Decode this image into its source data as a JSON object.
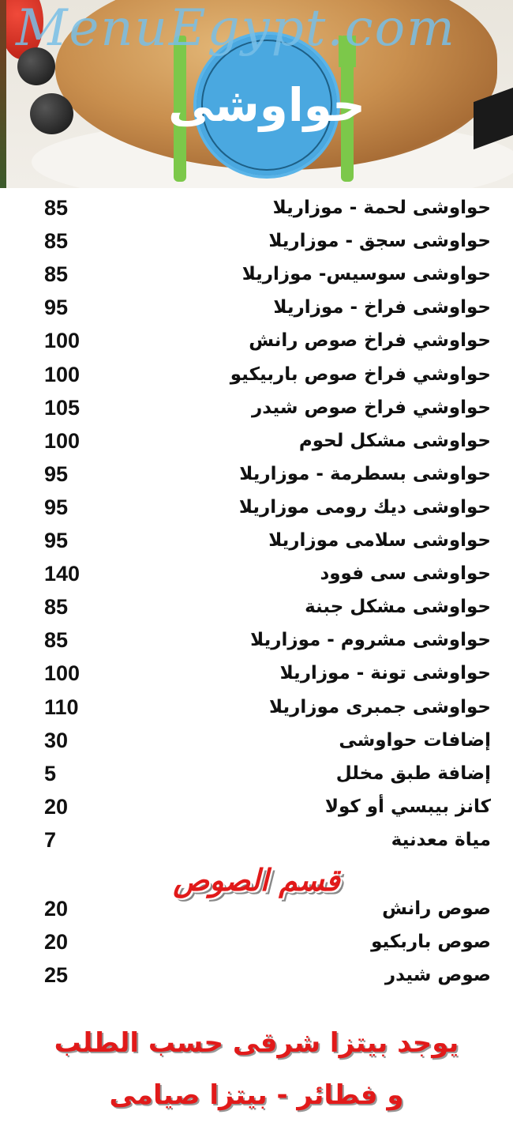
{
  "header": {
    "logo_text": "حواوشى"
  },
  "watermark": "MenuEgypt.com",
  "items": [
    {
      "name": "حواوشى لحمة - موزاريلا",
      "price": "85"
    },
    {
      "name": "حواوشى سجق - موزاريلا",
      "price": "85"
    },
    {
      "name": "حواوشى سوسيس- موزاريلا",
      "price": "85"
    },
    {
      "name": "حواوشى فراخ - موزاريلا",
      "price": "95"
    },
    {
      "name": "حواوشي فراخ صوص رانش",
      "price": "100"
    },
    {
      "name": "حواوشي فراخ صوص باربيكيو",
      "price": "100"
    },
    {
      "name": "حواوشي فراخ صوص شيدر",
      "price": "105"
    },
    {
      "name": "حواوشى مشكل لحوم",
      "price": "100"
    },
    {
      "name": "حواوشى بسطرمة - موزاريلا",
      "price": "95"
    },
    {
      "name": "حواوشى ديك رومى موزاريلا",
      "price": "95"
    },
    {
      "name": "حواوشى سلامى موزاريلا",
      "price": "95"
    },
    {
      "name": "حواوشى سى فوود",
      "price": "140"
    },
    {
      "name": "حواوشى مشكل جبنة",
      "price": "85"
    },
    {
      "name": "حواوشى مشروم - موزاريلا",
      "price": "85"
    },
    {
      "name": "حواوشى تونة - موزاريلا",
      "price": "100"
    },
    {
      "name": "حواوشى جمبرى موزاريلا",
      "price": "110"
    },
    {
      "name": "إضافات حواوشى",
      "price": "30"
    },
    {
      "name": "إضافة طبق مخلل",
      "price": "5"
    },
    {
      "name": "كانز بيبسي أو كولا",
      "price": "20"
    },
    {
      "name": "مياة معدنية",
      "price": "7"
    }
  ],
  "sauces": {
    "title": "قسم الصوص",
    "items": [
      {
        "name": "صوص رانش",
        "price": "20"
      },
      {
        "name": "صوص باربكيو",
        "price": "20"
      },
      {
        "name": "صوص شيدر",
        "price": "25"
      }
    ]
  },
  "footer": {
    "line1": "يوجد بيتزا شرقى حسب الطلب",
    "line2": "و فطائر - بيتزا صيامى"
  },
  "colors": {
    "accent_red": "#e11a1a",
    "logo_blue": "#4aa8e0",
    "cutlery_green": "#7cc84a"
  }
}
